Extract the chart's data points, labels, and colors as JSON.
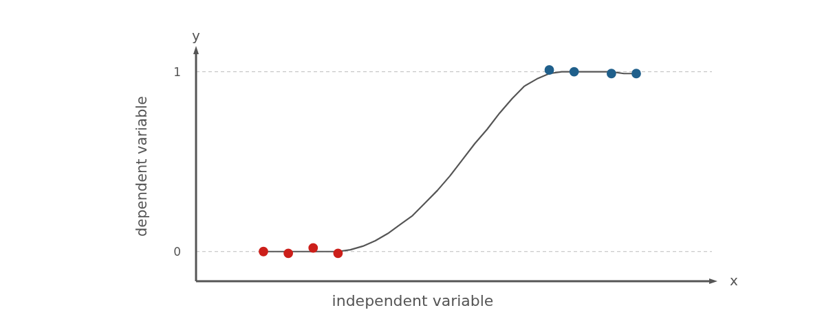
{
  "chart_data": {
    "type": "scatter",
    "xlabel": "independent variable",
    "ylabel": "dependent variable",
    "annotations": [
      "x",
      "y"
    ],
    "categories": [
      null,
      null,
      null,
      null,
      null,
      null,
      null,
      null,
      null,
      null,
      null,
      null,
      null,
      null,
      null,
      null,
      null,
      null,
      null,
      null,
      null,
      null,
      null,
      null,
      null,
      null,
      null,
      null,
      null,
      null,
      null
    ],
    "ylim": [
      -0.165,
      1.113
    ],
    "yticks": [
      0,
      1
    ],
    "grid": false,
    "marker": "circle",
    "ref_lines": [
      {
        "axis": "y",
        "value": 0,
        "color": "#bbbbbb",
        "line_style": "dashed"
      },
      {
        "axis": "y",
        "value": 1,
        "color": "#bbbbbb",
        "line_style": "dashed"
      }
    ],
    "series": [
      {
        "type": "line",
        "color": "#555555",
        "marker": "none",
        "line_style": "solid",
        "values": [
          0,
          0,
          0,
          0,
          0,
          0,
          0,
          0.01,
          0.03,
          0.06,
          0.1,
          0.15,
          0.2,
          0.27,
          0.34,
          0.42,
          0.51,
          0.6,
          0.68,
          0.77,
          0.85,
          0.92,
          0.96,
          0.99,
          1,
          1,
          1,
          1,
          1,
          0.99,
          0.99
        ]
      },
      {
        "color": "#cc1f1a",
        "values": [
          0,
          null,
          -0.01,
          null,
          0.02,
          null,
          -0.01,
          null,
          null,
          null,
          null,
          null,
          null,
          null,
          null,
          null,
          null,
          null,
          null,
          null,
          null,
          null,
          null,
          null,
          null,
          null,
          null,
          null,
          null,
          null,
          null
        ]
      },
      {
        "color": "#1f5f8b",
        "values": [
          null,
          null,
          null,
          null,
          null,
          null,
          null,
          null,
          null,
          null,
          null,
          null,
          null,
          null,
          null,
          null,
          null,
          null,
          null,
          null,
          null,
          null,
          null,
          1.01,
          null,
          1,
          null,
          null,
          0.99,
          null,
          0.99
        ]
      }
    ]
  }
}
